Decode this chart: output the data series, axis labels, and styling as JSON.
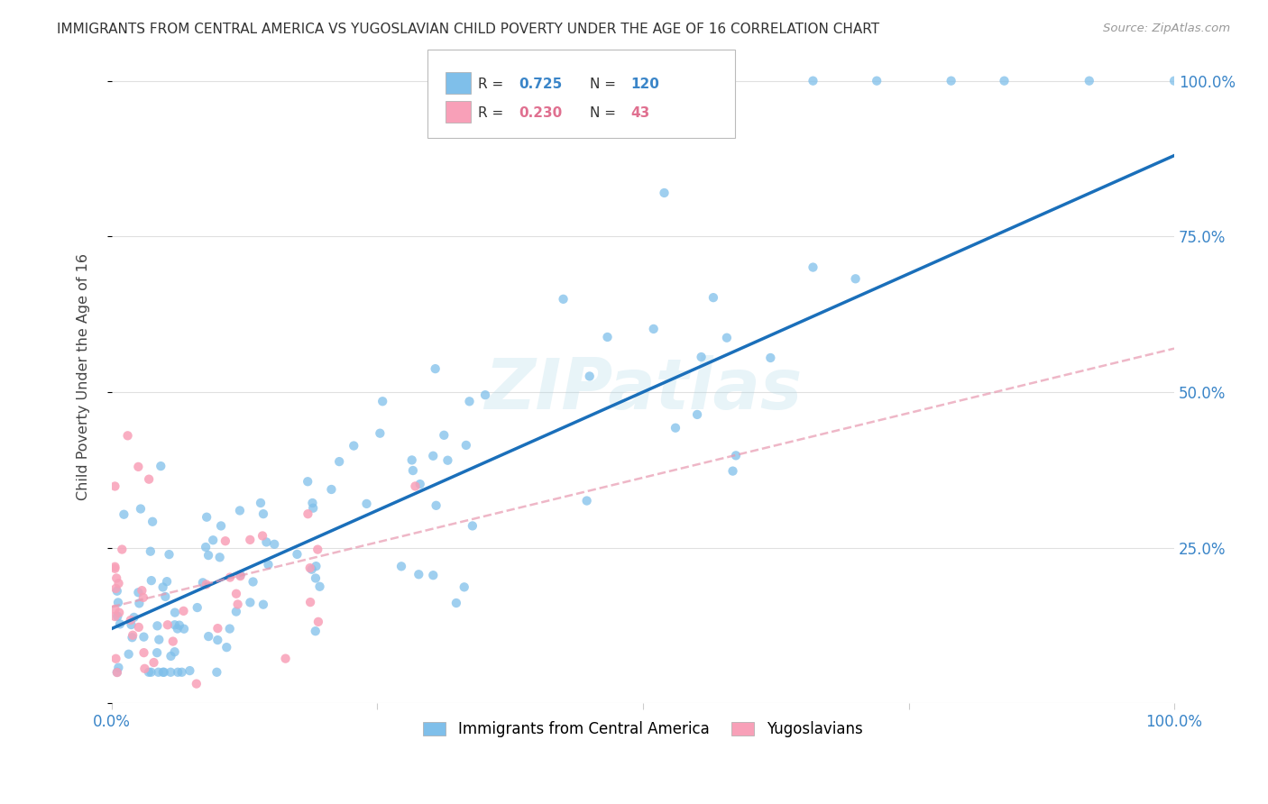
{
  "title": "IMMIGRANTS FROM CENTRAL AMERICA VS YUGOSLAVIAN CHILD POVERTY UNDER THE AGE OF 16 CORRELATION CHART",
  "source": "Source: ZipAtlas.com",
  "ylabel": "Child Poverty Under the Age of 16",
  "xlim": [
    0,
    1.0
  ],
  "ylim": [
    0,
    1.05
  ],
  "blue_R": 0.725,
  "blue_N": 120,
  "pink_R": 0.23,
  "pink_N": 43,
  "blue_color": "#7fbfea",
  "pink_color": "#f8a0b8",
  "blue_line_color": "#1a6fba",
  "pink_line_color": "#e899b0",
  "background_color": "#ffffff",
  "grid_color": "#e0e0e0",
  "blue_line_x0": 0.0,
  "blue_line_y0": 0.12,
  "blue_line_x1": 1.0,
  "blue_line_y1": 0.88,
  "pink_line_x0": 0.0,
  "pink_line_y0": 0.155,
  "pink_line_x1": 1.0,
  "pink_line_y1": 0.57
}
